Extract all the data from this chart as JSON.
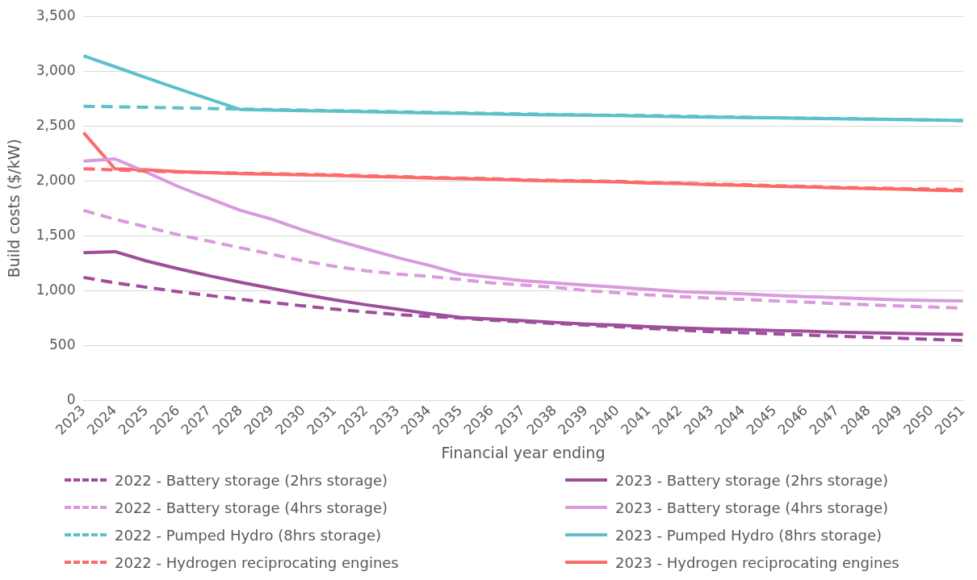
{
  "chart_data": {
    "type": "line",
    "xlabel": "Financial year ending",
    "ylabel": "Build costs ($/kW)",
    "categories": [
      "2023",
      "2024",
      "2025",
      "2026",
      "2027",
      "2028",
      "2029",
      "2030",
      "2031",
      "2032",
      "2033",
      "2034",
      "2035",
      "2036",
      "2037",
      "2038",
      "2039",
      "2040",
      "2041",
      "2042",
      "2043",
      "2044",
      "2045",
      "2046",
      "2047",
      "2048",
      "2049",
      "2050",
      "2051"
    ],
    "ylim": [
      0,
      3500
    ],
    "yticks": [
      {
        "value": 0,
        "label": "0"
      },
      {
        "value": 500,
        "label": "500"
      },
      {
        "value": 1000,
        "label": "1,000"
      },
      {
        "value": 1500,
        "label": "1,500"
      },
      {
        "value": 2000,
        "label": "2,000"
      },
      {
        "value": 2500,
        "label": "2,500"
      },
      {
        "value": 3000,
        "label": "3,000"
      },
      {
        "value": 3500,
        "label": "3,500"
      }
    ],
    "grid": "y",
    "legend": "bottom",
    "marker": "none",
    "series": [
      {
        "name": "2022 - Battery storage (2hrs storage)",
        "color": "#a04d9c",
        "line_style": "dashed",
        "values": [
          1120,
          1070,
          1030,
          990,
          955,
          920,
          890,
          860,
          830,
          805,
          780,
          765,
          750,
          730,
          715,
          700,
          685,
          670,
          655,
          640,
          625,
          615,
          605,
          595,
          585,
          575,
          565,
          555,
          545
        ]
      },
      {
        "name": "2022 - Battery storage (4hrs storage)",
        "color": "#d99ade",
        "line_style": "dashed",
        "values": [
          1730,
          1650,
          1580,
          1510,
          1450,
          1390,
          1330,
          1270,
          1220,
          1180,
          1150,
          1130,
          1100,
          1070,
          1050,
          1030,
          1000,
          980,
          960,
          945,
          930,
          920,
          905,
          895,
          880,
          870,
          860,
          850,
          840
        ]
      },
      {
        "name": "2022 - Pumped Hydro (8hrs storage)",
        "color": "#5ec0ca",
        "line_style": "dashed",
        "values": [
          2680,
          2675,
          2670,
          2665,
          2660,
          2655,
          2650,
          2645,
          2640,
          2635,
          2630,
          2625,
          2620,
          2615,
          2610,
          2605,
          2600,
          2598,
          2595,
          2590,
          2585,
          2580,
          2575,
          2572,
          2568,
          2564,
          2560,
          2555,
          2550
        ]
      },
      {
        "name": "2022 - Hydrogen reciprocating engines",
        "color": "#fd6a6a",
        "line_style": "dashed",
        "values": [
          2110,
          2100,
          2090,
          2080,
          2075,
          2070,
          2065,
          2060,
          2055,
          2045,
          2040,
          2030,
          2025,
          2020,
          2010,
          2005,
          2000,
          1995,
          1985,
          1980,
          1970,
          1965,
          1955,
          1950,
          1940,
          1935,
          1930,
          1925,
          1920
        ]
      },
      {
        "name": "2023 - Battery storage (2hrs storage)",
        "color": "#a04d9c",
        "line_style": "solid",
        "values": [
          1345,
          1355,
          1270,
          1200,
          1135,
          1075,
          1020,
          965,
          915,
          870,
          830,
          790,
          755,
          740,
          725,
          710,
          695,
          685,
          670,
          660,
          650,
          645,
          635,
          630,
          620,
          615,
          610,
          605,
          600
        ]
      },
      {
        "name": "2023 - Battery storage (4hrs storage)",
        "color": "#d99ade",
        "line_style": "solid",
        "values": [
          2180,
          2200,
          2080,
          1950,
          1840,
          1730,
          1650,
          1550,
          1460,
          1380,
          1300,
          1230,
          1150,
          1120,
          1090,
          1070,
          1050,
          1030,
          1010,
          990,
          980,
          970,
          955,
          945,
          935,
          925,
          915,
          910,
          905
        ]
      },
      {
        "name": "2023 - Pumped Hydro (8hrs storage)",
        "color": "#5ec0ca",
        "line_style": "solid",
        "values": [
          3140,
          3040,
          2940,
          2840,
          2745,
          2650,
          2645,
          2640,
          2635,
          2630,
          2625,
          2620,
          2615,
          2610,
          2605,
          2600,
          2598,
          2595,
          2590,
          2585,
          2580,
          2577,
          2575,
          2570,
          2566,
          2562,
          2558,
          2554,
          2550
        ]
      },
      {
        "name": "2023 - Hydrogen reciprocating engines",
        "color": "#fd6a6a",
        "line_style": "solid",
        "values": [
          2440,
          2110,
          2100,
          2085,
          2075,
          2065,
          2060,
          2055,
          2050,
          2040,
          2035,
          2025,
          2020,
          2015,
          2005,
          2000,
          1995,
          1990,
          1980,
          1975,
          1965,
          1960,
          1950,
          1945,
          1935,
          1930,
          1925,
          1915,
          1910
        ]
      }
    ]
  }
}
